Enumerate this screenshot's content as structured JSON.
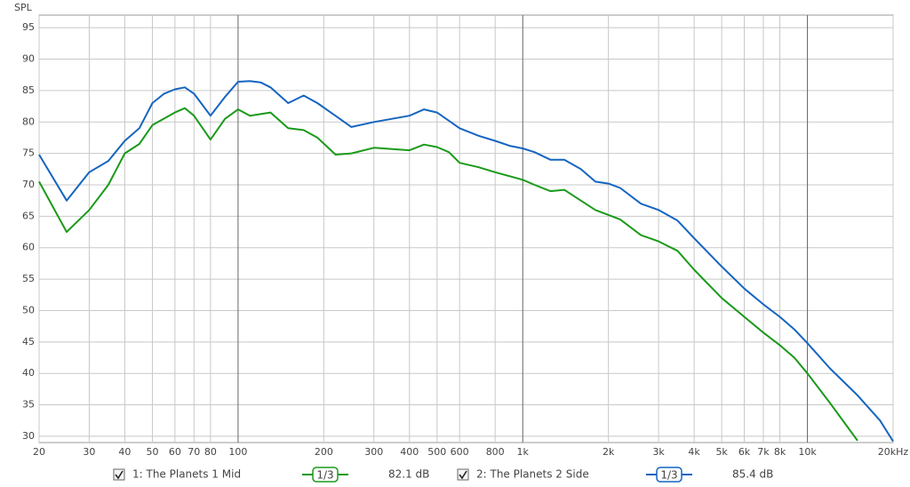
{
  "chart_data": {
    "type": "line",
    "y_label": "SPL",
    "log_x": true,
    "grid": true,
    "xlim": [
      20,
      20000
    ],
    "ylim": [
      29,
      97
    ],
    "xticks": [
      20,
      30,
      40,
      50,
      60,
      70,
      80,
      100,
      200,
      300,
      400,
      500,
      600,
      800,
      {
        "value": 1000,
        "label": "1k"
      },
      {
        "value": 2000,
        "label": "2k"
      },
      {
        "value": 3000,
        "label": "3k"
      },
      {
        "value": 4000,
        "label": "4k"
      },
      {
        "value": 5000,
        "label": "5k"
      },
      {
        "value": 6000,
        "label": "6k"
      },
      {
        "value": 7000,
        "label": "7k"
      },
      {
        "value": 8000,
        "label": "8k"
      },
      {
        "value": 10000,
        "label": "10k"
      },
      {
        "value": 20000,
        "label": "20kHz"
      }
    ],
    "yticks": [
      30,
      35,
      40,
      45,
      50,
      55,
      60,
      65,
      70,
      75,
      80,
      85,
      90,
      95
    ],
    "series": [
      {
        "name": "1: The Planets 1 Mid",
        "color": "#1a9a1a",
        "smoothing": "1/3",
        "level": "82.1 dB",
        "x": [
          20,
          25,
          30,
          35,
          40,
          45,
          50,
          60,
          65,
          70,
          80,
          90,
          100,
          110,
          130,
          150,
          170,
          190,
          220,
          250,
          300,
          400,
          450,
          500,
          550,
          600,
          700,
          800,
          1000,
          1100,
          1250,
          1400,
          1600,
          1800,
          2200,
          2600,
          3000,
          3500,
          4000,
          5000,
          6000,
          7000,
          8000,
          9000,
          10000,
          12000,
          15000
        ],
        "values": [
          70.5,
          62.5,
          66,
          70,
          75,
          76.5,
          79.5,
          81.5,
          82.2,
          81,
          77.2,
          80.5,
          82,
          81,
          81.5,
          79,
          78.7,
          77.5,
          74.8,
          75,
          75.9,
          75.5,
          76.4,
          76,
          75.2,
          73.5,
          72.8,
          72,
          70.8,
          70,
          69,
          69.2,
          67.5,
          66,
          64.5,
          62,
          61,
          59.5,
          56.5,
          52,
          49,
          46.5,
          44.5,
          42.5,
          40,
          35.3,
          29.3
        ]
      },
      {
        "name": "2: The Planets 2 Side",
        "color": "#1565c0",
        "smoothing": "1/3",
        "level": "85.4 dB",
        "x": [
          20,
          25,
          30,
          35,
          40,
          45,
          50,
          55,
          60,
          65,
          70,
          80,
          90,
          100,
          110,
          120,
          130,
          150,
          170,
          190,
          250,
          300,
          400,
          450,
          500,
          600,
          700,
          800,
          900,
          1000,
          1100,
          1250,
          1400,
          1600,
          1800,
          2000,
          2200,
          2600,
          3000,
          3500,
          4000,
          5000,
          6000,
          7000,
          8000,
          9000,
          10000,
          12000,
          15000,
          18000,
          20000
        ],
        "values": [
          74.8,
          67.5,
          72,
          73.8,
          77,
          79,
          83,
          84.5,
          85.2,
          85.5,
          84.5,
          81,
          84,
          86.4,
          86.5,
          86.3,
          85.5,
          83,
          84.2,
          83,
          79.2,
          80,
          81,
          82,
          81.5,
          79,
          77.8,
          77,
          76.2,
          75.8,
          75.2,
          74,
          74,
          72.5,
          70.5,
          70.2,
          69.5,
          67,
          66,
          64.3,
          61.5,
          57,
          53.5,
          51,
          49,
          47,
          44.8,
          40.8,
          36.5,
          32.5,
          29.2
        ]
      }
    ]
  }
}
